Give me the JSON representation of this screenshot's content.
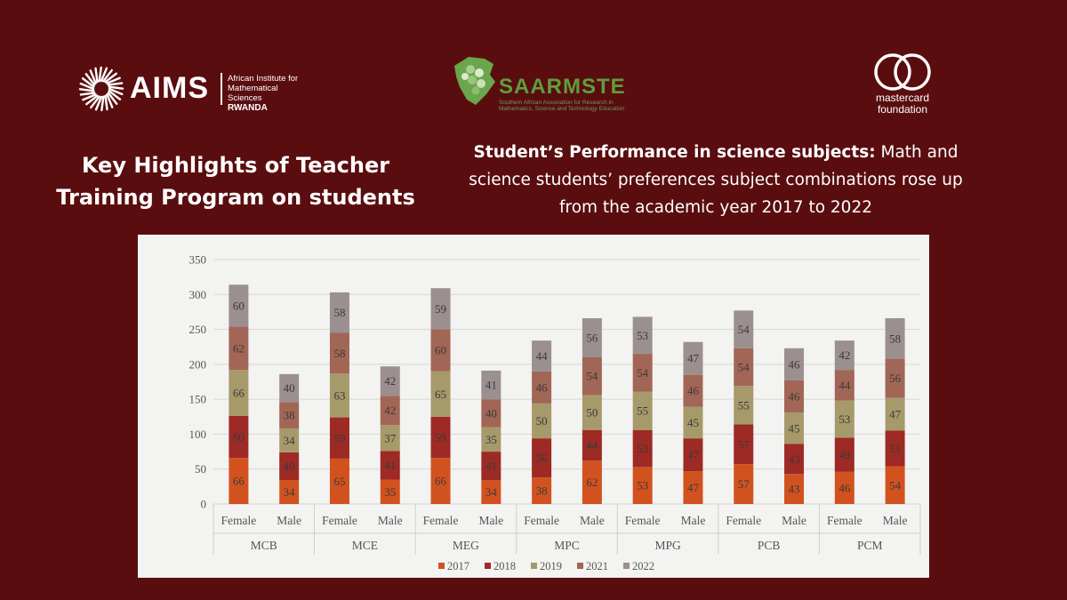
{
  "logos": {
    "aims": {
      "word": "AIMS",
      "line1": "African Institute for",
      "line2": "Mathematical Sciences",
      "line3": "RWANDA"
    },
    "saarmste": {
      "word": "SAARMSTE",
      "tagline": "Southern African Association for Research in Mathematics, Science and Technology Education"
    },
    "mastercard": {
      "line1": "mastercard",
      "line2": "foundation"
    }
  },
  "heading_left": "Key Highlights of Teacher Training Program on students",
  "heading_right": {
    "bold": "Student’s Performance in science subjects:",
    "rest": " Math and science students’ preferences subject combinations rose up from the academic year 2017 to 2022"
  },
  "colors": {
    "background": "#5a0d0f",
    "series": [
      "#d2521f",
      "#9e2a25",
      "#a69a6b",
      "#a26656",
      "#9c8f8f"
    ]
  },
  "chart_data": {
    "type": "bar",
    "stacked": true,
    "ylim": [
      0,
      350
    ],
    "yticks": [
      0,
      50,
      100,
      150,
      200,
      250,
      300,
      350
    ],
    "grid": true,
    "legend_position": "bottom",
    "groups": [
      "MCB",
      "MCE",
      "MEG",
      "MPC",
      "MPG",
      "PCB",
      "PCM"
    ],
    "sub_categories": [
      "Female",
      "Male"
    ],
    "series": [
      {
        "name": "2017",
        "values": [
          66,
          34,
          65,
          35,
          66,
          34,
          38,
          62,
          53,
          47,
          57,
          43,
          46,
          54
        ]
      },
      {
        "name": "2018",
        "values": [
          60,
          40,
          59,
          41,
          59,
          41,
          56,
          44,
          53,
          47,
          57,
          43,
          49,
          51
        ]
      },
      {
        "name": "2019",
        "values": [
          66,
          34,
          63,
          37,
          65,
          35,
          50,
          50,
          55,
          45,
          55,
          45,
          53,
          47
        ]
      },
      {
        "name": "2021",
        "values": [
          62,
          38,
          58,
          42,
          60,
          40,
          46,
          54,
          54,
          46,
          54,
          46,
          44,
          56
        ]
      },
      {
        "name": "2022",
        "values": [
          60,
          40,
          58,
          42,
          59,
          41,
          44,
          56,
          53,
          47,
          54,
          46,
          42,
          58
        ]
      }
    ]
  }
}
